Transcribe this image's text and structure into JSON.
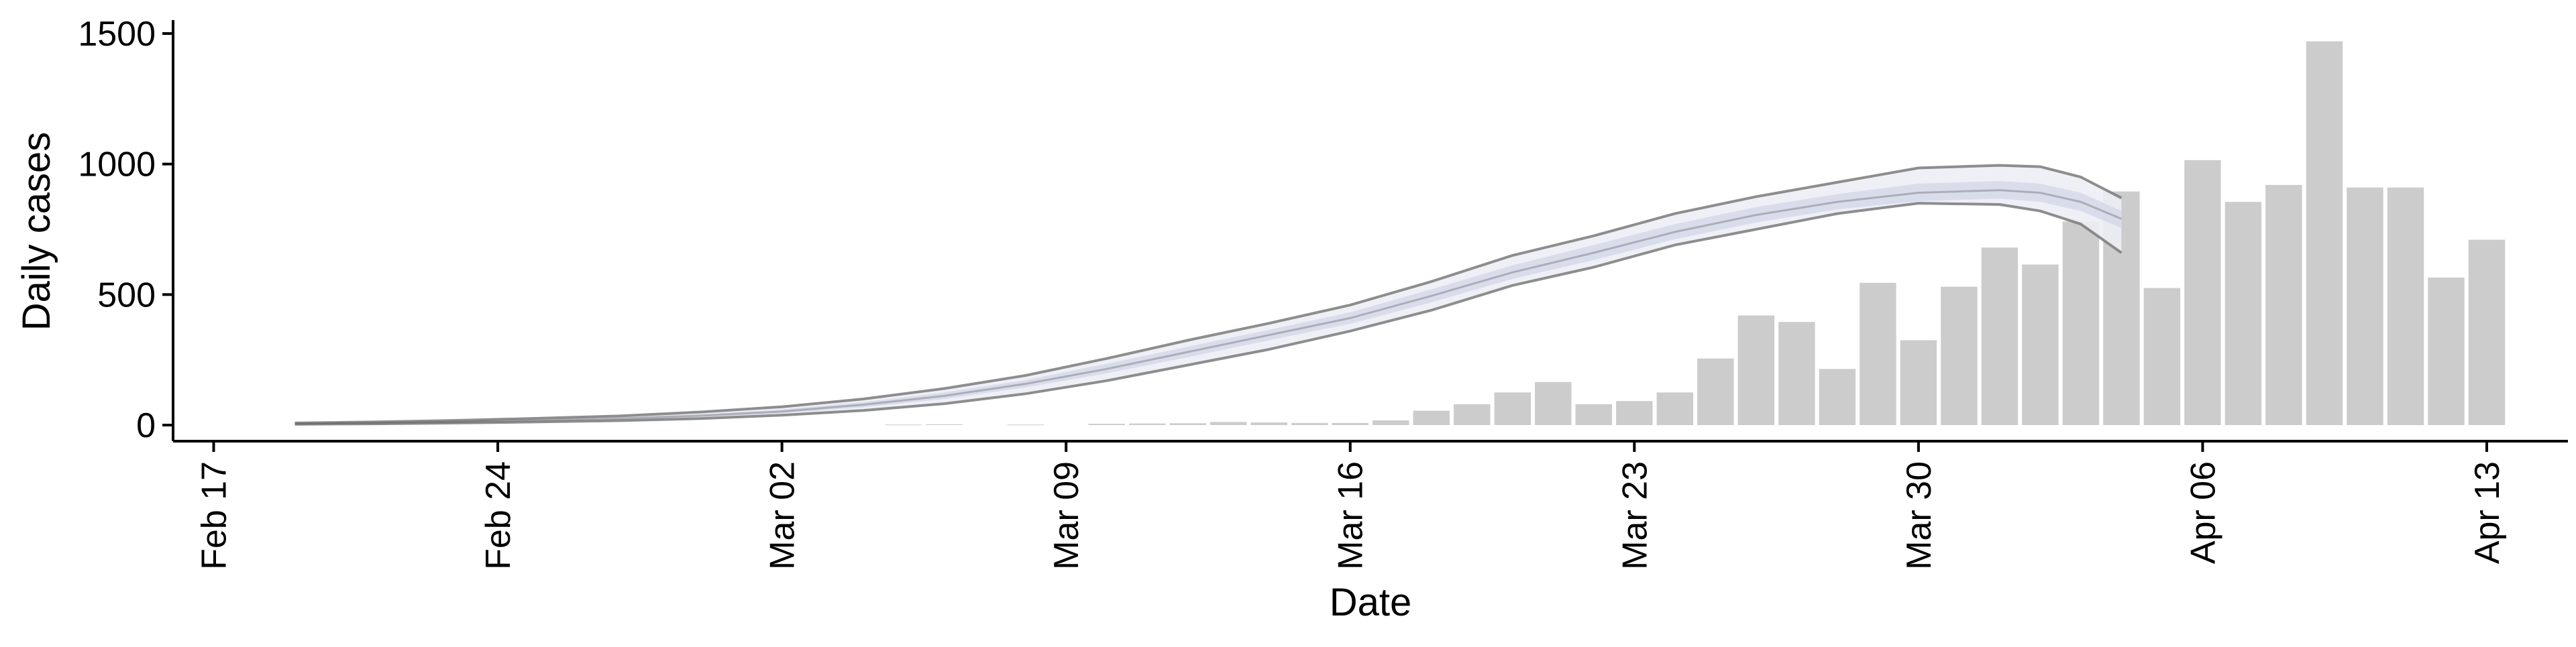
{
  "chart_data": {
    "type": "bar",
    "title": "",
    "xlabel": "Date",
    "ylabel": "Daily cases",
    "ylim": [
      0,
      1500
    ],
    "y_ticks": [
      0,
      500,
      1000,
      1500
    ],
    "x_ticks": [
      {
        "date": "2020-02-17",
        "label": "Feb 17"
      },
      {
        "date": "2020-02-24",
        "label": "Feb 24"
      },
      {
        "date": "2020-03-02",
        "label": "Mar 02"
      },
      {
        "date": "2020-03-09",
        "label": "Mar 09"
      },
      {
        "date": "2020-03-16",
        "label": "Mar 16"
      },
      {
        "date": "2020-03-23",
        "label": "Mar 23"
      },
      {
        "date": "2020-03-30",
        "label": "Mar 30"
      },
      {
        "date": "2020-04-06",
        "label": "Apr 06"
      },
      {
        "date": "2020-04-13",
        "label": "Apr 13"
      }
    ],
    "xlim": [
      "2020-02-16",
      "2020-04-15"
    ],
    "grid": false,
    "legend": "none",
    "colors": {
      "bars": "#cccccc",
      "band_outer": "#eceef5",
      "band_inner": "#d3d8e8",
      "band_lines": "#7a7a7a",
      "fade_line": "#555555",
      "axis": "#000000"
    },
    "bars": {
      "dates": [
        "2020-03-05",
        "2020-03-06",
        "2020-03-08",
        "2020-03-10",
        "2020-03-11",
        "2020-03-12",
        "2020-03-13",
        "2020-03-14",
        "2020-03-15",
        "2020-03-16",
        "2020-03-17",
        "2020-03-18",
        "2020-03-19",
        "2020-03-20",
        "2020-03-21",
        "2020-03-22",
        "2020-03-23",
        "2020-03-24",
        "2020-03-25",
        "2020-03-26",
        "2020-03-27",
        "2020-03-28",
        "2020-03-29",
        "2020-03-30",
        "2020-03-31",
        "2020-04-01",
        "2020-04-02",
        "2020-04-03",
        "2020-04-04",
        "2020-04-05",
        "2020-04-06",
        "2020-04-07",
        "2020-04-08",
        "2020-04-09",
        "2020-04-10",
        "2020-04-11",
        "2020-04-12",
        "2020-04-13"
      ],
      "values": [
        2,
        3,
        2,
        5,
        6,
        7,
        12,
        10,
        8,
        8,
        18,
        55,
        80,
        125,
        165,
        80,
        92,
        125,
        255,
        420,
        395,
        215,
        545,
        325,
        530,
        680,
        615,
        780,
        895,
        525,
        1015,
        855,
        920,
        1470,
        910,
        910,
        565,
        710
      ]
    },
    "estimate": {
      "dates": [
        "2020-02-19",
        "2020-02-21",
        "2020-02-23",
        "2020-02-25",
        "2020-02-27",
        "2020-02-29",
        "2020-03-02",
        "2020-03-04",
        "2020-03-06",
        "2020-03-08",
        "2020-03-10",
        "2020-03-12",
        "2020-03-14",
        "2020-03-16",
        "2020-03-18",
        "2020-03-20",
        "2020-03-22",
        "2020-03-24",
        "2020-03-26",
        "2020-03-28",
        "2020-03-30",
        "2020-04-01",
        "2020-04-02",
        "2020-04-03",
        "2020-04-04"
      ],
      "upper": [
        8,
        12,
        18,
        26,
        35,
        50,
        70,
        100,
        140,
        190,
        255,
        325,
        390,
        460,
        550,
        650,
        725,
        810,
        875,
        930,
        985,
        995,
        990,
        950,
        870
      ],
      "upper_inner": [
        6,
        10,
        15,
        22,
        30,
        42,
        60,
        88,
        125,
        172,
        235,
        300,
        365,
        432,
        520,
        612,
        690,
        770,
        835,
        885,
        925,
        935,
        925,
        890,
        820
      ],
      "median": [
        5,
        8,
        12,
        18,
        25,
        36,
        52,
        78,
        112,
        158,
        215,
        280,
        345,
        410,
        495,
        585,
        660,
        740,
        805,
        855,
        890,
        900,
        890,
        855,
        790
      ],
      "lower_inner": [
        4,
        6,
        10,
        15,
        21,
        31,
        45,
        68,
        100,
        144,
        198,
        260,
        325,
        388,
        470,
        560,
        632,
        712,
        776,
        826,
        858,
        867,
        855,
        820,
        755
      ],
      "lower": [
        3,
        5,
        8,
        12,
        17,
        25,
        38,
        56,
        82,
        120,
        170,
        230,
        290,
        360,
        440,
        535,
        605,
        690,
        750,
        810,
        850,
        845,
        820,
        770,
        660
      ]
    }
  }
}
